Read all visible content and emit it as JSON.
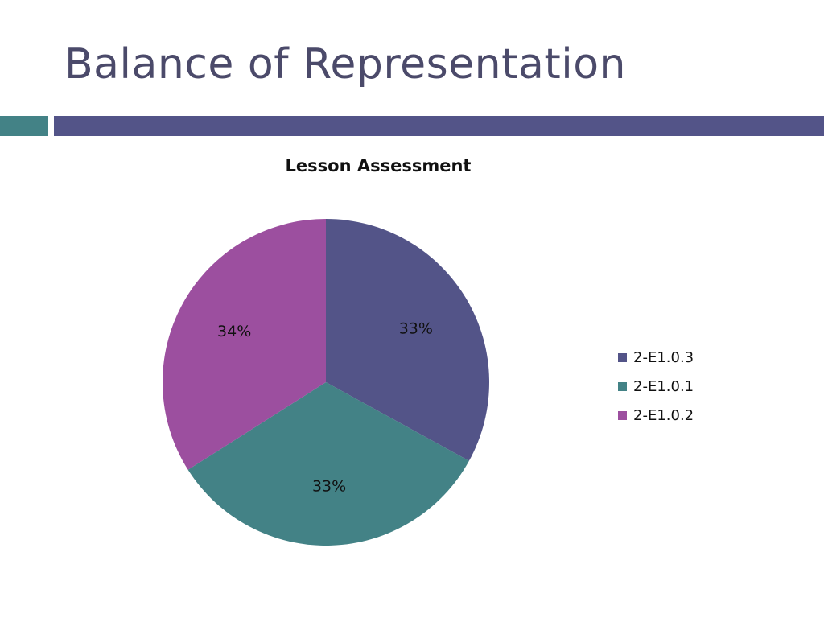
{
  "slide": {
    "title": "Balance of Representation",
    "accent_teal": "#438286",
    "accent_purple": "#535488"
  },
  "chart_data": {
    "type": "pie",
    "title": "Lesson Assessment",
    "legend_position": "right",
    "series": [
      {
        "name": "2-E1.0.3",
        "value": 33,
        "label": "33%",
        "color": "#535488"
      },
      {
        "name": "2-E1.0.1",
        "value": 33,
        "label": "33%",
        "color": "#438286"
      },
      {
        "name": "2-E1.0.2",
        "value": 34,
        "label": "34%",
        "color": "#9c4f9f"
      }
    ]
  }
}
